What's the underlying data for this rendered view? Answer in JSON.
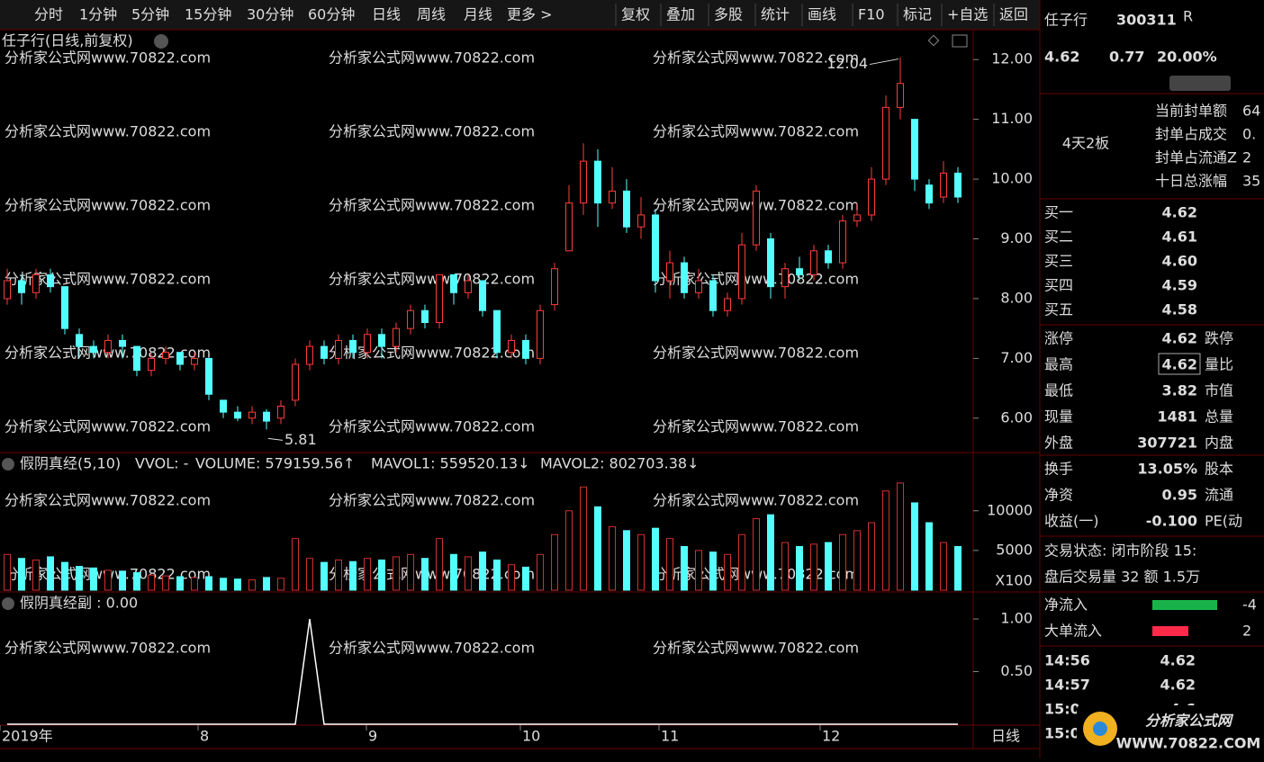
{
  "toolbar": {
    "left": [
      "分时",
      "1分钟",
      "5分钟",
      "15分钟",
      "30分钟",
      "60分钟",
      "日线",
      "周线",
      "月线",
      "更多 >"
    ],
    "active": "日线",
    "right": [
      "复权",
      "叠加",
      "多股",
      "统计",
      "画线",
      "F10",
      "标记",
      "+自选",
      "返回"
    ]
  },
  "watermark": "分析家公式网www.70822.com",
  "price_panel": {
    "title": "任子行(日线,前复权)",
    "high_label": "12.04",
    "low_label": "5.81",
    "ylim": [
      5.47,
      12.47
    ],
    "yticks": [
      {
        "value": 12,
        "label": "12.00"
      },
      {
        "value": 11,
        "label": "11.00"
      },
      {
        "value": 10,
        "label": "10.00"
      },
      {
        "value": 9,
        "label": "9.00"
      },
      {
        "value": 8,
        "label": "8.00"
      },
      {
        "value": 7,
        "label": "7.00"
      },
      {
        "value": 6,
        "label": "6.00"
      }
    ],
    "candles": [
      [
        8.0,
        8.3,
        8.5,
        7.9
      ],
      [
        8.3,
        8.1,
        8.4,
        7.9
      ],
      [
        8.1,
        8.4,
        8.5,
        8.0
      ],
      [
        8.4,
        8.2,
        8.5,
        8.1
      ],
      [
        8.2,
        7.5,
        8.2,
        7.4
      ],
      [
        7.4,
        7.2,
        7.5,
        7.0
      ],
      [
        7.2,
        7.1,
        7.3,
        7.0
      ],
      [
        7.1,
        7.3,
        7.4,
        7.0
      ],
      [
        7.3,
        7.2,
        7.4,
        7.0
      ],
      [
        7.2,
        6.8,
        7.2,
        6.7
      ],
      [
        6.8,
        7.0,
        7.1,
        6.7
      ],
      [
        7.0,
        7.1,
        7.2,
        6.9
      ],
      [
        7.1,
        6.9,
        7.1,
        6.8
      ],
      [
        6.9,
        7.0,
        7.1,
        6.8
      ],
      [
        7.0,
        6.4,
        7.0,
        6.3
      ],
      [
        6.3,
        6.1,
        6.3,
        6.0
      ],
      [
        6.1,
        6.0,
        6.2,
        5.95
      ],
      [
        6.0,
        6.1,
        6.2,
        5.9
      ],
      [
        6.1,
        5.95,
        6.15,
        5.81
      ],
      [
        6.0,
        6.2,
        6.3,
        5.9
      ],
      [
        6.3,
        6.9,
        7.0,
        6.2
      ],
      [
        6.9,
        7.2,
        7.3,
        6.8
      ],
      [
        7.2,
        7.0,
        7.3,
        6.9
      ],
      [
        7.0,
        7.3,
        7.4,
        6.9
      ],
      [
        7.3,
        7.1,
        7.4,
        7.0
      ],
      [
        7.1,
        7.4,
        7.5,
        7.0
      ],
      [
        7.4,
        7.2,
        7.5,
        7.0
      ],
      [
        7.2,
        7.5,
        7.6,
        7.1
      ],
      [
        7.5,
        7.8,
        7.9,
        7.4
      ],
      [
        7.8,
        7.6,
        7.9,
        7.5
      ],
      [
        7.6,
        8.4,
        8.4,
        7.5
      ],
      [
        8.4,
        8.1,
        8.4,
        7.9
      ],
      [
        8.1,
        8.3,
        8.4,
        8.0
      ],
      [
        8.3,
        7.8,
        8.3,
        7.7
      ],
      [
        7.8,
        7.1,
        7.8,
        7.0
      ],
      [
        7.1,
        7.3,
        7.4,
        7.0
      ],
      [
        7.3,
        7.0,
        7.4,
        6.9
      ],
      [
        7.0,
        7.8,
        7.9,
        6.9
      ],
      [
        7.9,
        8.5,
        8.6,
        7.8
      ],
      [
        8.8,
        9.6,
        9.9,
        8.8
      ],
      [
        9.6,
        10.3,
        10.6,
        9.4
      ],
      [
        10.3,
        9.6,
        10.5,
        9.2
      ],
      [
        9.6,
        9.8,
        10.2,
        9.5
      ],
      [
        9.8,
        9.2,
        10.0,
        9.1
      ],
      [
        9.2,
        9.4,
        9.7,
        9.0
      ],
      [
        9.4,
        8.3,
        9.5,
        8.1
      ],
      [
        8.3,
        8.6,
        8.8,
        8.0
      ],
      [
        8.6,
        8.1,
        8.7,
        8.0
      ],
      [
        8.1,
        8.3,
        8.5,
        8.0
      ],
      [
        8.3,
        7.8,
        8.4,
        7.7
      ],
      [
        7.8,
        8.0,
        8.1,
        7.7
      ],
      [
        8.0,
        8.9,
        9.1,
        7.9
      ],
      [
        8.9,
        9.8,
        9.9,
        8.8
      ],
      [
        9.0,
        8.2,
        9.1,
        8.0
      ],
      [
        8.2,
        8.5,
        8.6,
        8.0
      ],
      [
        8.5,
        8.4,
        8.7,
        8.3
      ],
      [
        8.4,
        8.8,
        8.9,
        8.3
      ],
      [
        8.8,
        8.6,
        8.9,
        8.5
      ],
      [
        8.6,
        9.3,
        9.4,
        8.5
      ],
      [
        9.3,
        9.4,
        9.6,
        9.2
      ],
      [
        9.4,
        10.0,
        10.2,
        9.3
      ],
      [
        10.0,
        11.2,
        11.4,
        9.9
      ],
      [
        11.2,
        11.6,
        12.04,
        11.0
      ],
      [
        11.0,
        10.0,
        11.0,
        9.8
      ],
      [
        9.9,
        9.6,
        10.0,
        9.5
      ],
      [
        9.7,
        10.1,
        10.3,
        9.6
      ],
      [
        10.1,
        9.7,
        10.2,
        9.6
      ]
    ]
  },
  "volume_panel": {
    "title": "假阴真经(5,10)",
    "vvol": "VVOL: -",
    "volume": "VOLUME: 579159.56↑",
    "mavol1": "MAVOL1: 559520.13↓",
    "mavol2": "MAVOL2: 802703.38↓",
    "unit": "X100",
    "ylim": [
      0,
      17000
    ],
    "yticks": [
      10000,
      5000
    ],
    "volumes": [
      4500,
      4000,
      3800,
      4200,
      3500,
      3000,
      2800,
      2500,
      2400,
      2200,
      1900,
      1800,
      1700,
      1600,
      1700,
      1500,
      1400,
      1300,
      1600,
      1500,
      6500,
      4000,
      3500,
      3800,
      3600,
      4000,
      3800,
      4200,
      4500,
      4000,
      6500,
      4500,
      4200,
      4800,
      3800,
      3200,
      2900,
      4500,
      7000,
      10000,
      13000,
      10500,
      8000,
      7500,
      7000,
      7800,
      6500,
      5500,
      5000,
      4800,
      4500,
      7000,
      9000,
      9500,
      6000,
      5500,
      5800,
      6000,
      7000,
      7500,
      8500,
      12500,
      13500,
      11000,
      8500,
      6000,
      5500
    ]
  },
  "indicator_panel": {
    "title": "假阴真经副 : 0.00",
    "ylim": [
      0,
      1.24
    ],
    "yticks": [
      {
        "value": 1,
        "label": "1.00"
      },
      {
        "value": 0.5,
        "label": "0.50"
      }
    ],
    "values": [
      0,
      0,
      0,
      0,
      0,
      0,
      0,
      0,
      0,
      0,
      0,
      0,
      0,
      0,
      0,
      0,
      0,
      0,
      0,
      0,
      0,
      1,
      0,
      0,
      0,
      0,
      0,
      0,
      0,
      0,
      0,
      0,
      0,
      0,
      0,
      0,
      0,
      0,
      0,
      0,
      0,
      0,
      0,
      0,
      0,
      0,
      0,
      0,
      0,
      0,
      0,
      0,
      0,
      0,
      0,
      0,
      0,
      0,
      0,
      0,
      0,
      0,
      0,
      0,
      0,
      0,
      0
    ]
  },
  "x_axis": {
    "labels": [
      "2019年",
      "8",
      "9",
      "10",
      "11",
      "12"
    ],
    "period": "日线"
  },
  "quote": {
    "name": "任子行",
    "code": "300311",
    "flag": "R",
    "price": "4.62",
    "change": "0.77",
    "pct": "20.00%",
    "board": "4天2板",
    "seal": [
      {
        "label": "当前封单额",
        "value": "64"
      },
      {
        "label": "封单占成交",
        "value": "0."
      },
      {
        "label": "封单占流通Z",
        "value": "2"
      },
      {
        "label": "十日总涨幅",
        "value": "35"
      }
    ],
    "book": [
      {
        "label": "买一",
        "value": "4.62"
      },
      {
        "label": "买二",
        "value": "4.61"
      },
      {
        "label": "买三",
        "value": "4.60"
      },
      {
        "label": "买四",
        "value": "4.59"
      },
      {
        "label": "买五",
        "value": "4.58"
      }
    ],
    "stats": [
      [
        "涨停",
        "4.62",
        "跌停"
      ],
      [
        "最高",
        "4.62",
        "量比"
      ],
      [
        "最低",
        "3.82",
        "市值"
      ],
      [
        "现量",
        "1481",
        "总量"
      ],
      [
        "外盘",
        "307721",
        "内盘"
      ]
    ],
    "stats2": [
      [
        "换手",
        "13.05%",
        "股本"
      ],
      [
        "净资",
        "0.95",
        "流通"
      ],
      [
        "收益(一)",
        "-0.100",
        "PE(动"
      ]
    ],
    "status": "交易状态: 闭市阶段 15:",
    "after": "盘后交易量 32 额 1.5万",
    "flow": [
      {
        "label": "净流入",
        "value": "-4"
      },
      {
        "label": "大单流入",
        "value": "2"
      }
    ],
    "trades": [
      [
        "14:56",
        "4.62"
      ],
      [
        "14:57",
        "4.62"
      ],
      [
        "15:0",
        "4.6"
      ],
      [
        "15:0"
      ]
    ],
    "logo": "分析家公式网",
    "logo_url": "WWW.70822.COM"
  }
}
